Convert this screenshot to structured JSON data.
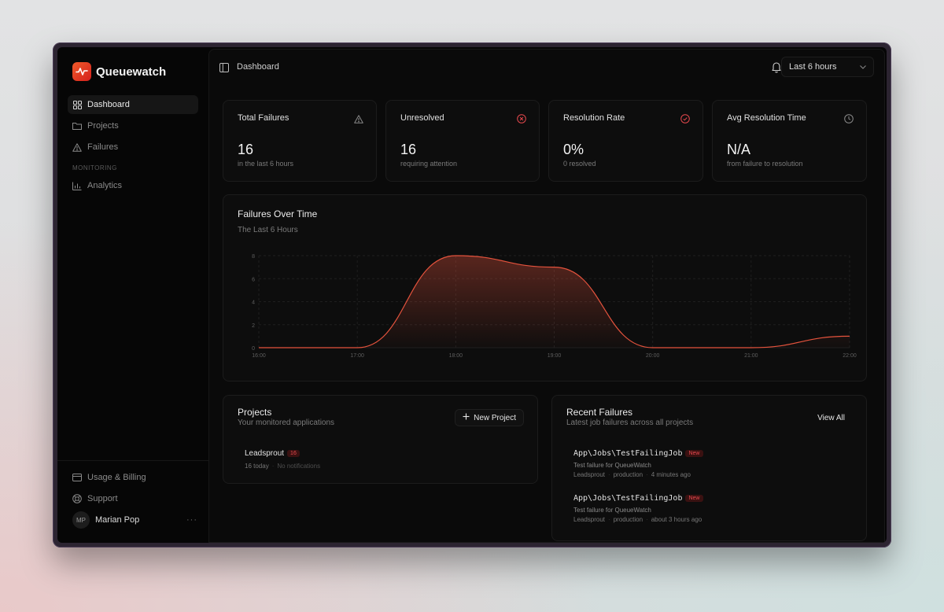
{
  "app": {
    "name": "Queuewatch"
  },
  "sidebar": {
    "items": [
      {
        "label": "Dashboard",
        "icon": "grid-icon",
        "active": true
      },
      {
        "label": "Projects",
        "icon": "folder-icon",
        "active": false
      },
      {
        "label": "Failures",
        "icon": "warning-icon",
        "active": false
      }
    ],
    "section_monitoring": "MONITORING",
    "monitoring_items": [
      {
        "label": "Analytics",
        "icon": "bar-chart-icon"
      }
    ],
    "bottom_items": [
      {
        "label": "Usage & Billing",
        "icon": "credit-card-icon"
      },
      {
        "label": "Support",
        "icon": "lifebuoy-icon"
      }
    ],
    "user": {
      "initials": "MP",
      "name": "Marian Pop",
      "more": "···"
    }
  },
  "header": {
    "breadcrumb": "Dashboard",
    "time_range": "Last 6 hours"
  },
  "stats": [
    {
      "title": "Total Failures",
      "value": "16",
      "sub": "in the last 6 hours",
      "icon": "warning-icon",
      "color": "#8a8a8a"
    },
    {
      "title": "Unresolved",
      "value": "16",
      "sub": "requiring attention",
      "icon": "x-circle-icon",
      "color": "#e5484d"
    },
    {
      "title": "Resolution Rate",
      "value": "0%",
      "sub": "0 resolved",
      "icon": "check-circle-icon",
      "color": "#e5484d"
    },
    {
      "title": "Avg Resolution Time",
      "value": "N/A",
      "sub": "from failure to resolution",
      "icon": "clock-icon",
      "color": "#8a8a8a"
    }
  ],
  "chart": {
    "title": "Failures Over Time",
    "subtitle": "The Last 6 Hours"
  },
  "chart_data": {
    "type": "area",
    "x": [
      "16:00",
      "17:00",
      "18:00",
      "19:00",
      "20:00",
      "21:00",
      "22:00"
    ],
    "values": [
      0,
      0,
      8,
      7,
      0,
      0,
      1
    ],
    "ylim": [
      0,
      8
    ],
    "yticks": [
      0,
      2,
      4,
      6,
      8
    ],
    "grid": true,
    "color": "#e5533d"
  },
  "projects": {
    "title": "Projects",
    "subtitle": "Your monitored applications",
    "new_button": "New Project",
    "items": [
      {
        "name": "Leadsprout",
        "badge": "16",
        "today": "16 today",
        "notifications": "No notifications"
      }
    ]
  },
  "recent": {
    "title": "Recent Failures",
    "subtitle": "Latest job failures across all projects",
    "view_all": "View All",
    "items": [
      {
        "job": "App\\Jobs\\TestFailingJob",
        "status": "New",
        "desc": "Test failure for QueueWatch",
        "project": "Leadsprout",
        "env": "production",
        "time": "4 minutes ago"
      },
      {
        "job": "App\\Jobs\\TestFailingJob",
        "status": "New",
        "desc": "Test failure for QueueWatch",
        "project": "Leadsprout",
        "env": "production",
        "time": "about 3 hours ago"
      }
    ]
  }
}
